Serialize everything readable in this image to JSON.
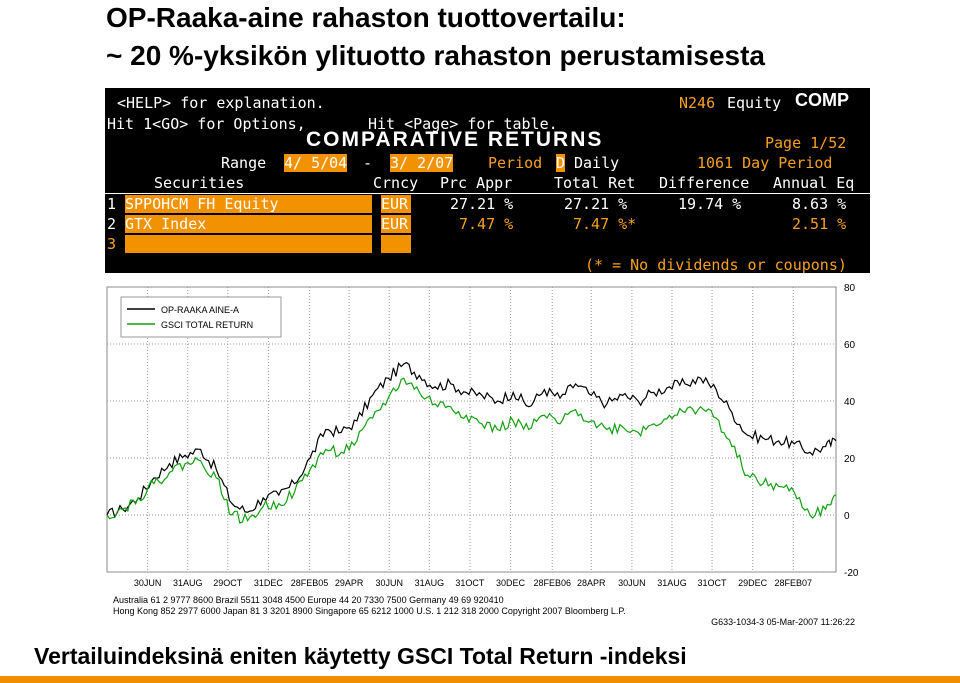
{
  "slide": {
    "title_line1": "OP-Raaka-aine rahaston tuottovertailu:",
    "title_line2": "~ 20 %-yksikön ylituotto rahaston perustamisesta",
    "caption": "Vertailuindeksinä eniten käytetty GSCI Total Return -indeksi"
  },
  "terminal": {
    "help": "<HELP> for explanation.",
    "n246": "N246",
    "equity": "Equity",
    "comp": "COMP",
    "hit_options": "Hit 1<GO> for Options,",
    "hit_page": "Hit <Page> for table.",
    "heading": "COMPARATIVE RETURNS",
    "page": "Page  1/52",
    "range_label": "Range",
    "range_start": "4/ 5/04",
    "range_dash": "-",
    "range_end": "3/ 2/07",
    "period_label": "Period",
    "period_value": "D",
    "period_daily": "Daily",
    "day_period": "1061 Day  Period",
    "col_securities": "Securities",
    "col_crncy": "Crncy",
    "col_prc_appr": "Prc Appr",
    "col_total_ret": "Total Ret",
    "col_difference": "Difference",
    "col_annual_eq": "Annual Eq",
    "rows": [
      {
        "num": "1",
        "security": "SPPOHCM FH Equity",
        "crncy": "EUR",
        "prc_appr": "27.21 %",
        "total_ret": "27.21 %",
        "difference": "19.74 %",
        "annual_eq": "8.63 %"
      },
      {
        "num": "2",
        "security": "GTX Index",
        "crncy": "EUR",
        "prc_appr": "7.47 %",
        "total_ret": "7.47 %*",
        "difference": "",
        "annual_eq": "2.51 %"
      },
      {
        "num": "3",
        "security": "",
        "crncy": "",
        "prc_appr": "",
        "total_ret": "",
        "difference": "",
        "annual_eq": ""
      }
    ],
    "footnote": "(* = No dividends or coupons)"
  },
  "footer": {
    "line1": "Australia 61 2 9777 8600       Brazil 5511 3048 4500          Europe 44 20 7330 7500          Germany 49 69 920410",
    "line2": "Hong Kong 852 2977 6000 Japan 81 3 3201 8900 Singapore 65 6212 1000 U.S. 1 212 318 2000 Copyright 2007 Bloomberg L.P.",
    "line3": "G633-1034-3 05-Mar-2007 11:26:22"
  },
  "colors": {
    "orange": "#f39200",
    "series1": "#000000",
    "series2": "#10a010"
  },
  "chart_data": {
    "type": "line",
    "title": "",
    "xlabel": "",
    "ylabel": "",
    "ylim": [
      -20,
      80
    ],
    "yticks": [
      80,
      60,
      40,
      20,
      0,
      -20
    ],
    "x_tick_labels": [
      "30JUN",
      "31AUG",
      "29OCT",
      "31DEC",
      "28FEB05",
      "29APR",
      "30JUN",
      "31AUG",
      "31OCT",
      "30DEC",
      "28FEB06",
      "28APR",
      "30JUN",
      "31AUG",
      "31OCT",
      "29DEC",
      "28FEB07"
    ],
    "x_tick_positions": [
      7.8,
      15.5,
      23.2,
      31,
      38.9,
      46.5,
      54.2,
      61.9,
      69.7,
      77.5,
      85.5,
      93,
      100.8,
      108.5,
      116.2,
      124,
      131.8
    ],
    "x_range": [
      0,
      140
    ],
    "grid": true,
    "legend": "top-left",
    "series": [
      {
        "name": "OP-RAAKA AINE-A",
        "color": "#000000",
        "x": [
          0,
          3,
          6,
          9,
          12,
          15,
          18,
          21,
          24,
          27,
          30,
          33,
          36,
          39,
          42,
          45,
          48,
          51,
          54,
          57,
          60,
          63,
          66,
          69,
          72,
          75,
          78,
          81,
          84,
          87,
          90,
          93,
          96,
          99,
          102,
          105,
          108,
          111,
          114,
          117,
          120,
          123,
          126,
          129,
          132,
          135,
          138,
          140
        ],
        "values": [
          0,
          2,
          6,
          13,
          18,
          21,
          23,
          16,
          4,
          1,
          6,
          7,
          11,
          20,
          30,
          29,
          33,
          42,
          48,
          53,
          49,
          45,
          46,
          43,
          42,
          40,
          43,
          38,
          44,
          41,
          46,
          42,
          39,
          42,
          40,
          43,
          45,
          46,
          48,
          44,
          36,
          28,
          27,
          26,
          25,
          22,
          24,
          26
        ]
      },
      {
        "name": "GSCI TOTAL RETURN",
        "color": "#10a010",
        "x": [
          0,
          3,
          6,
          9,
          12,
          15,
          18,
          21,
          24,
          27,
          30,
          33,
          36,
          39,
          42,
          45,
          48,
          51,
          54,
          57,
          60,
          63,
          66,
          69,
          72,
          75,
          78,
          81,
          84,
          87,
          90,
          93,
          96,
          99,
          102,
          105,
          108,
          111,
          114,
          117,
          120,
          123,
          126,
          129,
          132,
          135,
          138,
          140
        ],
        "values": [
          0,
          2,
          6,
          11,
          15,
          18,
          19,
          13,
          0,
          -2,
          3,
          4,
          8,
          16,
          23,
          22,
          26,
          34,
          41,
          48,
          43,
          39,
          38,
          35,
          32,
          30,
          33,
          30,
          35,
          32,
          37,
          33,
          30,
          31,
          29,
          32,
          35,
          36,
          38,
          34,
          24,
          14,
          11,
          10,
          8,
          0,
          2,
          7
        ]
      }
    ]
  }
}
